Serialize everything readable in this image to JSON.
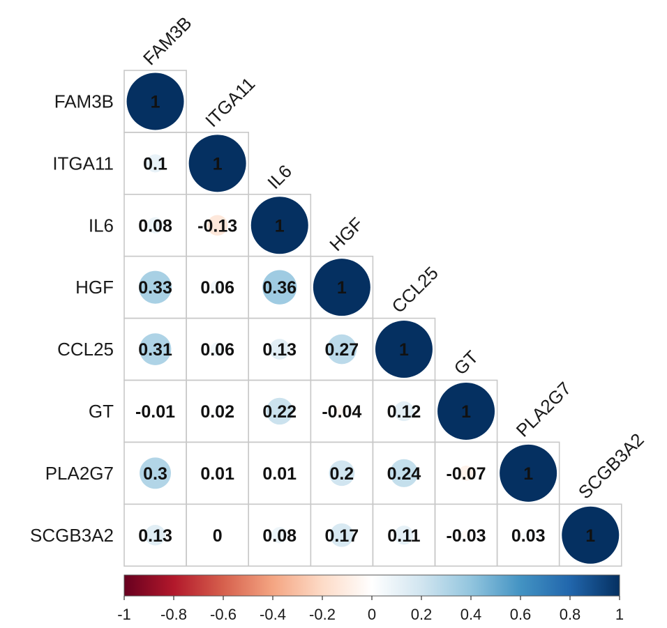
{
  "chart_data": {
    "type": "heatmap",
    "variables": [
      "FAM3B",
      "ITGA11",
      "IL6",
      "HGF",
      "CCL25",
      "GT",
      "PLA2G7",
      "SCGB3A2"
    ],
    "lower_triangle": [
      [
        1
      ],
      [
        0.1,
        1
      ],
      [
        0.08,
        -0.13,
        1
      ],
      [
        0.33,
        0.06,
        0.36,
        1
      ],
      [
        0.31,
        0.06,
        0.13,
        0.27,
        1
      ],
      [
        -0.01,
        0.02,
        0.22,
        -0.04,
        0.12,
        1
      ],
      [
        0.3,
        0.01,
        0.01,
        0.2,
        0.24,
        -0.07,
        1
      ],
      [
        0.13,
        0,
        0.08,
        0.17,
        0.11,
        -0.03,
        0.03,
        1
      ]
    ],
    "colorbar": {
      "range": [
        -1,
        1
      ],
      "ticks": [
        "-1",
        "-0.8",
        "-0.6",
        "-0.4",
        "-0.2",
        "0",
        "0.2",
        "0.4",
        "0.6",
        "0.8",
        "1"
      ],
      "colors": [
        "#67001F",
        "#B2182B",
        "#D6604D",
        "#F4A582",
        "#FDDBC7",
        "#FFFFFF",
        "#D1E5F0",
        "#92C5DE",
        "#4393C3",
        "#2166AC",
        "#053061"
      ]
    },
    "grid": true,
    "legend": "bottom"
  }
}
